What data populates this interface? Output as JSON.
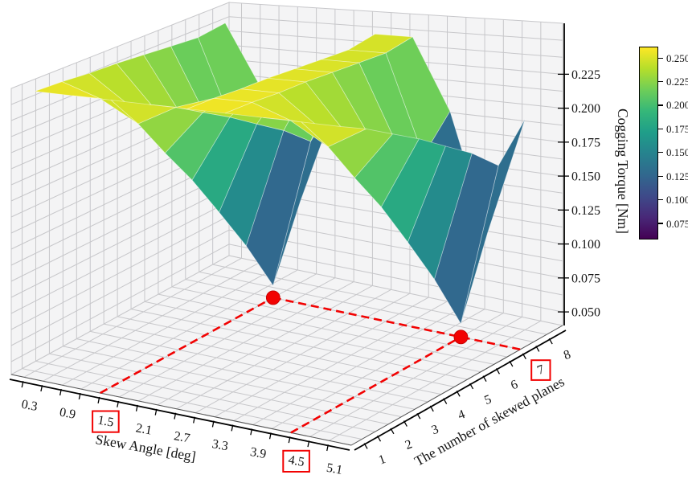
{
  "figure": {
    "background": "#ffffff"
  },
  "chart_data": {
    "type": "surface",
    "title": "",
    "xlabel": "Skew Angle [deg]",
    "ylabel": "The number of skewed planes",
    "zlabel": "Cogging Torque [Nm]",
    "x": [
      0.3,
      0.9,
      1.5,
      2.1,
      2.7,
      3.3,
      3.9,
      4.5,
      5.1
    ],
    "y": [
      1,
      2,
      3,
      4,
      5,
      6,
      7,
      8
    ],
    "z": [
      [
        0.258,
        0.258,
        0.258,
        0.258,
        0.258,
        0.258,
        0.258,
        0.258,
        0.258
      ],
      [
        0.257,
        0.247,
        0.231,
        0.247,
        0.257,
        0.257,
        0.247,
        0.231,
        0.247
      ],
      [
        0.255,
        0.234,
        0.199,
        0.234,
        0.255,
        0.255,
        0.234,
        0.199,
        0.234
      ],
      [
        0.254,
        0.221,
        0.168,
        0.221,
        0.254,
        0.254,
        0.221,
        0.168,
        0.221
      ],
      [
        0.252,
        0.206,
        0.132,
        0.206,
        0.252,
        0.252,
        0.206,
        0.132,
        0.206
      ],
      [
        0.25,
        0.191,
        0.094,
        0.191,
        0.25,
        0.25,
        0.191,
        0.094,
        0.191
      ],
      [
        0.248,
        0.172,
        0.05,
        0.172,
        0.248,
        0.248,
        0.172,
        0.05,
        0.172
      ],
      [
        0.251,
        0.196,
        0.107,
        0.196,
        0.251,
        0.251,
        0.196,
        0.107,
        0.196
      ]
    ],
    "xlim": [
      0.1,
      5.45
    ],
    "ylim": [
      0.6,
      8.6
    ],
    "zlim": [
      0.04,
      0.2625
    ],
    "xticklabels": [
      "0.3",
      "0.9",
      "1.5",
      "2.1",
      "2.7",
      "3.3",
      "3.9",
      "4.5",
      "5.1"
    ],
    "yticklabels": [
      "1",
      "2",
      "3",
      "4",
      "5",
      "6",
      "7",
      "8"
    ],
    "zticklabels": [
      "0.050",
      "0.075",
      "0.100",
      "0.125",
      "0.150",
      "0.175",
      "0.200",
      "0.225"
    ],
    "highlighted_xticks": [
      "1.5",
      "4.5"
    ],
    "highlighted_yticks": [
      "7"
    ],
    "minima_markers": [
      {
        "x": 1.5,
        "y": 7
      },
      {
        "x": 4.5,
        "y": 7
      }
    ],
    "colormap": {
      "name": "viridis",
      "vmin": 0.058,
      "vmax": 0.262
    },
    "colorbar": {
      "ticks": [
        "0.075",
        "0.100",
        "0.125",
        "0.150",
        "0.175",
        "0.200",
        "0.225",
        "0.250"
      ],
      "vmin": 0.058,
      "vmax": 0.262
    },
    "grid": true,
    "legend": null
  },
  "colors": {
    "annotation_red": "#f20202",
    "pane": "#f4f4f5",
    "grid_line": "#c7c7ca",
    "axis_line": "#000000",
    "viridis_stops": [
      "#440154",
      "#482878",
      "#3e4a89",
      "#31688e",
      "#26828e",
      "#1f9e89",
      "#35b779",
      "#6ece58",
      "#b5de2b",
      "#fde725"
    ]
  }
}
